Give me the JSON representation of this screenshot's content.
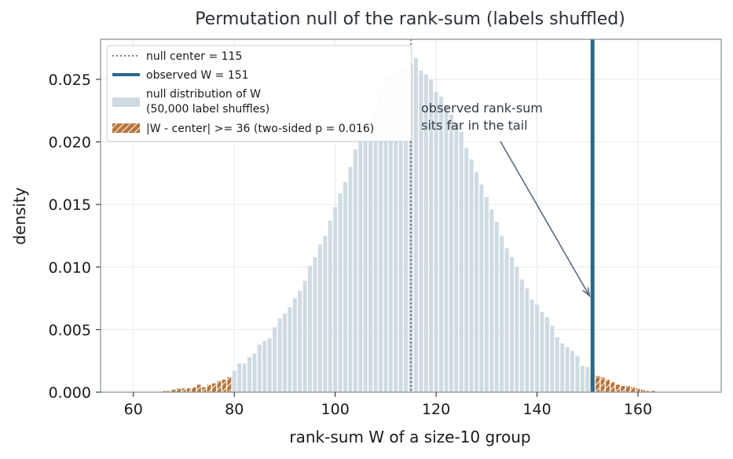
{
  "chart_data": {
    "type": "bar",
    "title": "Permutation null of the rank-sum (labels shuffled)",
    "xlabel": "rank-sum W of a size-10 group",
    "ylabel": "density",
    "xlim": [
      53.5,
      176.5
    ],
    "ylim": [
      0,
      0.0282
    ],
    "x_ticks": [
      "60",
      "80",
      "100",
      "120",
      "140",
      "160"
    ],
    "y_ticks": [
      "0.000",
      "0.005",
      "0.010",
      "0.015",
      "0.020",
      "0.025"
    ],
    "grid": true,
    "legend_position": "upper-left",
    "null_center": 115,
    "observed_W": 151,
    "tail_threshold": 36,
    "colors": {
      "bars": "#cfdbe2",
      "tail_bars": "#b8763d",
      "observed_line": "#2c6788",
      "center_line": "#555555",
      "annotation_arrow": "#5a6a7a"
    },
    "legend": [
      {
        "label": "null center = 115"
      },
      {
        "label": "observed W = 151"
      },
      {
        "label": "null distribution of W",
        "label2": "(50,000 label shuffles)"
      },
      {
        "label": "|W - center| >= 36  (two-sided p = 0.016)"
      }
    ],
    "annotation": {
      "lines": [
        "observed rank-sum",
        "sits far in the tail"
      ]
    },
    "series": [
      {
        "name": "null distribution of W",
        "x": [
          60,
          61,
          62,
          63,
          64,
          65,
          66,
          67,
          68,
          69,
          70,
          71,
          72,
          73,
          74,
          75,
          76,
          77,
          78,
          79,
          80,
          81,
          82,
          83,
          84,
          85,
          86,
          87,
          88,
          89,
          90,
          91,
          92,
          93,
          94,
          95,
          96,
          97,
          98,
          99,
          100,
          101,
          102,
          103,
          104,
          105,
          106,
          107,
          108,
          109,
          110,
          111,
          112,
          113,
          114,
          115,
          116,
          117,
          118,
          119,
          120,
          121,
          122,
          123,
          124,
          125,
          126,
          127,
          128,
          129,
          130,
          131,
          132,
          133,
          134,
          135,
          136,
          137,
          138,
          139,
          140,
          141,
          142,
          143,
          144,
          145,
          146,
          147,
          148,
          149,
          150,
          151,
          152,
          153,
          154,
          155,
          156,
          157,
          158,
          159,
          160,
          161,
          162,
          163,
          164,
          165,
          166,
          167,
          168,
          169,
          170
        ],
        "values": [
          0.0,
          0.0,
          0.0,
          0.0,
          0.0,
          0.0,
          0.0001,
          0.0001,
          0.0002,
          0.0003,
          0.0003,
          0.0003,
          0.0004,
          0.0006,
          0.0004,
          0.0006,
          0.0007,
          0.0009,
          0.001,
          0.0012,
          0.0017,
          0.0023,
          0.0023,
          0.0028,
          0.0031,
          0.0038,
          0.0041,
          0.0043,
          0.0052,
          0.0059,
          0.0063,
          0.0068,
          0.0075,
          0.0081,
          0.0089,
          0.0101,
          0.0108,
          0.0118,
          0.0125,
          0.0137,
          0.0148,
          0.0159,
          0.0168,
          0.018,
          0.0194,
          0.0203,
          0.0211,
          0.0218,
          0.0228,
          0.0241,
          0.0251,
          0.0252,
          0.0257,
          0.0258,
          0.0258,
          0.0262,
          0.0267,
          0.0257,
          0.0254,
          0.025,
          0.024,
          0.0236,
          0.0229,
          0.0222,
          0.0215,
          0.0208,
          0.0195,
          0.0186,
          0.0176,
          0.0166,
          0.0156,
          0.0146,
          0.0136,
          0.0125,
          0.0115,
          0.0108,
          0.01,
          0.009,
          0.0083,
          0.0074,
          0.007,
          0.0064,
          0.006,
          0.0053,
          0.0044,
          0.0039,
          0.0036,
          0.0033,
          0.0029,
          0.0021,
          0.002,
          0.0016,
          0.0013,
          0.0012,
          0.001,
          0.0008,
          0.0006,
          0.0005,
          0.0005,
          0.0004,
          0.0003,
          0.0002,
          0.0001,
          0.0001,
          0.0,
          0.0,
          0.0,
          0.0,
          0.0,
          0.0,
          0.0
        ]
      }
    ]
  }
}
